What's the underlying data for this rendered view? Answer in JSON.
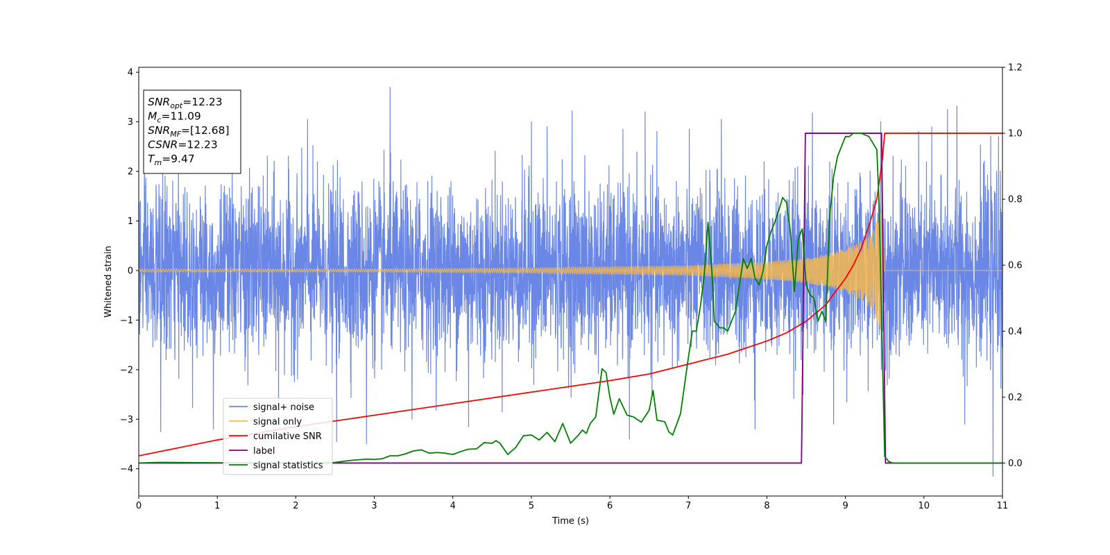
{
  "chart_data": {
    "type": "line",
    "xlabel": "Time (s)",
    "ylabel": "Whitened strain",
    "xlim": [
      0,
      11
    ],
    "ylim": [
      -4.55,
      4.1
    ],
    "y2lim": [
      -0.1,
      1.2
    ],
    "x_ticks": [
      0,
      1,
      2,
      3,
      4,
      5,
      6,
      7,
      8,
      9,
      10,
      11
    ],
    "x_tick_labels": [
      "0",
      "1",
      "2",
      "3",
      "4",
      "5",
      "6",
      "7",
      "8",
      "9",
      "10",
      "11"
    ],
    "y_ticks": [
      -4,
      -3,
      -2,
      -1,
      0,
      1,
      2,
      3,
      4
    ],
    "y_tick_labels": [
      "−4",
      "−3",
      "−2",
      "−1",
      "0",
      "1",
      "2",
      "3",
      "4"
    ],
    "y2_ticks": [
      0.0,
      0.2,
      0.4,
      0.6,
      0.8,
      1.0,
      1.2
    ],
    "y2_tick_labels": [
      "0.0",
      "0.2",
      "0.4",
      "0.6",
      "0.8",
      "1.0",
      "1.2"
    ],
    "grid": false,
    "legend_position": "lower-left",
    "annotation_box": {
      "position": "top-left",
      "lines": [
        {
          "symbol": "SNR",
          "sub": "opt",
          "value": "=12.23"
        },
        {
          "symbol": "M",
          "sub": "c",
          "value": "=11.09"
        },
        {
          "symbol": "SNR",
          "sub": "MF",
          "value": "=[12.68]"
        },
        {
          "symbol": "CSNR",
          "sub": "",
          "value": "=12.23"
        },
        {
          "symbol": "T",
          "sub": "m",
          "value": "=9.47"
        }
      ]
    },
    "series": [
      {
        "name": "signal+ noise",
        "axis": "left",
        "color": "#6b87e6",
        "kind": "noise",
        "sigma": 0.85,
        "x_range": [
          0,
          11
        ],
        "peak_values": [
          {
            "x": 0.28,
            "y": -3.25
          },
          {
            "x": 0.95,
            "y": -3.2
          },
          {
            "x": 1.78,
            "y": -3.12
          },
          {
            "x": 2.15,
            "y": 3.05
          },
          {
            "x": 2.52,
            "y": -3.45
          },
          {
            "x": 2.9,
            "y": -3.5
          },
          {
            "x": 3.2,
            "y": 3.7
          },
          {
            "x": 3.48,
            "y": -3.0
          },
          {
            "x": 4.2,
            "y": 3.25
          },
          {
            "x": 4.2,
            "y": -3.15
          },
          {
            "x": 5.0,
            "y": 3.0
          },
          {
            "x": 5.2,
            "y": 2.9
          },
          {
            "x": 5.52,
            "y": 3.22
          },
          {
            "x": 6.25,
            "y": -3.4
          },
          {
            "x": 6.45,
            "y": 3.2
          },
          {
            "x": 7.42,
            "y": 3.05
          },
          {
            "x": 7.85,
            "y": -3.2
          },
          {
            "x": 8.58,
            "y": 3.18
          },
          {
            "x": 8.85,
            "y": -3.1
          },
          {
            "x": 9.45,
            "y": 3.0
          },
          {
            "x": 10.1,
            "y": 2.9
          },
          {
            "x": 10.3,
            "y": 3.25
          },
          {
            "x": 10.42,
            "y": 3.32
          },
          {
            "x": 10.52,
            "y": -3.1
          },
          {
            "x": 10.88,
            "y": -4.15
          },
          {
            "x": 10.95,
            "y": 2.7
          }
        ]
      },
      {
        "name": "signal only",
        "axis": "left",
        "color": "#f5b94d",
        "kind": "chirp",
        "merger_time": 9.47,
        "amplitude": [
          {
            "x": 0,
            "y": 0.03
          },
          {
            "x": 3,
            "y": 0.03
          },
          {
            "x": 5,
            "y": 0.05
          },
          {
            "x": 7,
            "y": 0.1
          },
          {
            "x": 8,
            "y": 0.18
          },
          {
            "x": 8.5,
            "y": 0.25
          },
          {
            "x": 8.8,
            "y": 0.35
          },
          {
            "x": 9.0,
            "y": 0.45
          },
          {
            "x": 9.2,
            "y": 0.6
          },
          {
            "x": 9.35,
            "y": 0.8
          },
          {
            "x": 9.43,
            "y": 1.15
          },
          {
            "x": 9.47,
            "y": 1.3
          },
          {
            "x": 9.5,
            "y": 0.02
          },
          {
            "x": 11,
            "y": 0.0
          }
        ]
      },
      {
        "name": "cumilative SNR",
        "axis": "right",
        "color": "#ff0000",
        "x": [
          0,
          1,
          2,
          3,
          4,
          5,
          6,
          6.5,
          7,
          7.5,
          8,
          8.25,
          8.5,
          8.75,
          9,
          9.1,
          9.2,
          9.3,
          9.4,
          9.47,
          9.5,
          11
        ],
        "y": [
          0.022,
          0.07,
          0.11,
          0.145,
          0.18,
          0.215,
          0.25,
          0.27,
          0.3,
          0.33,
          0.37,
          0.395,
          0.43,
          0.48,
          0.56,
          0.6,
          0.65,
          0.72,
          0.8,
          0.92,
          1.0,
          1.0
        ]
      },
      {
        "name": "label",
        "axis": "right",
        "color": "#7f007f",
        "x": [
          0,
          8.44,
          8.49,
          9.46,
          9.51,
          11
        ],
        "y": [
          0,
          0,
          1,
          1,
          0,
          0
        ]
      },
      {
        "name": "signal statistics",
        "axis": "right",
        "color": "#008000",
        "x": [
          0,
          0.25,
          1.0,
          2.0,
          2.5,
          2.6,
          2.7,
          2.8,
          2.9,
          3.0,
          3.1,
          3.2,
          3.3,
          3.4,
          3.5,
          3.6,
          3.7,
          3.8,
          3.9,
          4.0,
          4.1,
          4.2,
          4.3,
          4.4,
          4.5,
          4.55,
          4.6,
          4.7,
          4.8,
          4.9,
          5.0,
          5.1,
          5.2,
          5.3,
          5.4,
          5.5,
          5.6,
          5.65,
          5.7,
          5.75,
          5.82,
          5.9,
          5.95,
          6.0,
          6.05,
          6.12,
          6.18,
          6.22,
          6.3,
          6.4,
          6.5,
          6.55,
          6.6,
          6.7,
          6.75,
          6.8,
          6.9,
          7.0,
          7.05,
          7.1,
          7.15,
          7.2,
          7.25,
          7.3,
          7.33,
          7.4,
          7.45,
          7.5,
          7.55,
          7.6,
          7.65,
          7.7,
          7.75,
          7.8,
          7.85,
          7.9,
          7.95,
          8.0,
          8.05,
          8.1,
          8.15,
          8.2,
          8.25,
          8.3,
          8.35,
          8.4,
          8.45,
          8.5,
          8.55,
          8.6,
          8.65,
          8.7,
          8.75,
          8.8,
          8.85,
          8.9,
          8.95,
          9.0,
          9.05,
          9.1,
          9.15,
          9.2,
          9.3,
          9.4,
          9.43,
          9.45,
          9.5,
          9.55,
          9.6,
          11
        ],
        "y": [
          0.0,
          0.002,
          0.001,
          0.001,
          0.002,
          0.005,
          0.008,
          0.01,
          0.012,
          0.011,
          0.013,
          0.022,
          0.022,
          0.028,
          0.037,
          0.04,
          0.03,
          0.032,
          0.03,
          0.026,
          0.035,
          0.042,
          0.043,
          0.062,
          0.06,
          0.068,
          0.06,
          0.026,
          0.047,
          0.083,
          0.085,
          0.07,
          0.093,
          0.065,
          0.12,
          0.06,
          0.085,
          0.1,
          0.09,
          0.12,
          0.14,
          0.286,
          0.275,
          0.2,
          0.148,
          0.195,
          0.165,
          0.145,
          0.14,
          0.124,
          0.16,
          0.22,
          0.13,
          0.125,
          0.095,
          0.085,
          0.15,
          0.32,
          0.4,
          0.4,
          0.47,
          0.565,
          0.73,
          0.58,
          0.43,
          0.41,
          0.41,
          0.4,
          0.43,
          0.46,
          0.54,
          0.62,
          0.59,
          0.62,
          0.56,
          0.54,
          0.58,
          0.66,
          0.7,
          0.73,
          0.765,
          0.805,
          0.79,
          0.7,
          0.52,
          0.68,
          0.71,
          0.54,
          0.51,
          0.5,
          0.43,
          0.46,
          0.43,
          0.75,
          0.87,
          0.93,
          0.96,
          0.99,
          0.99,
          1.0,
          1.0,
          1.0,
          0.99,
          0.95,
          0.78,
          0.55,
          0.02,
          0.005,
          0.0,
          0.0
        ]
      }
    ]
  }
}
